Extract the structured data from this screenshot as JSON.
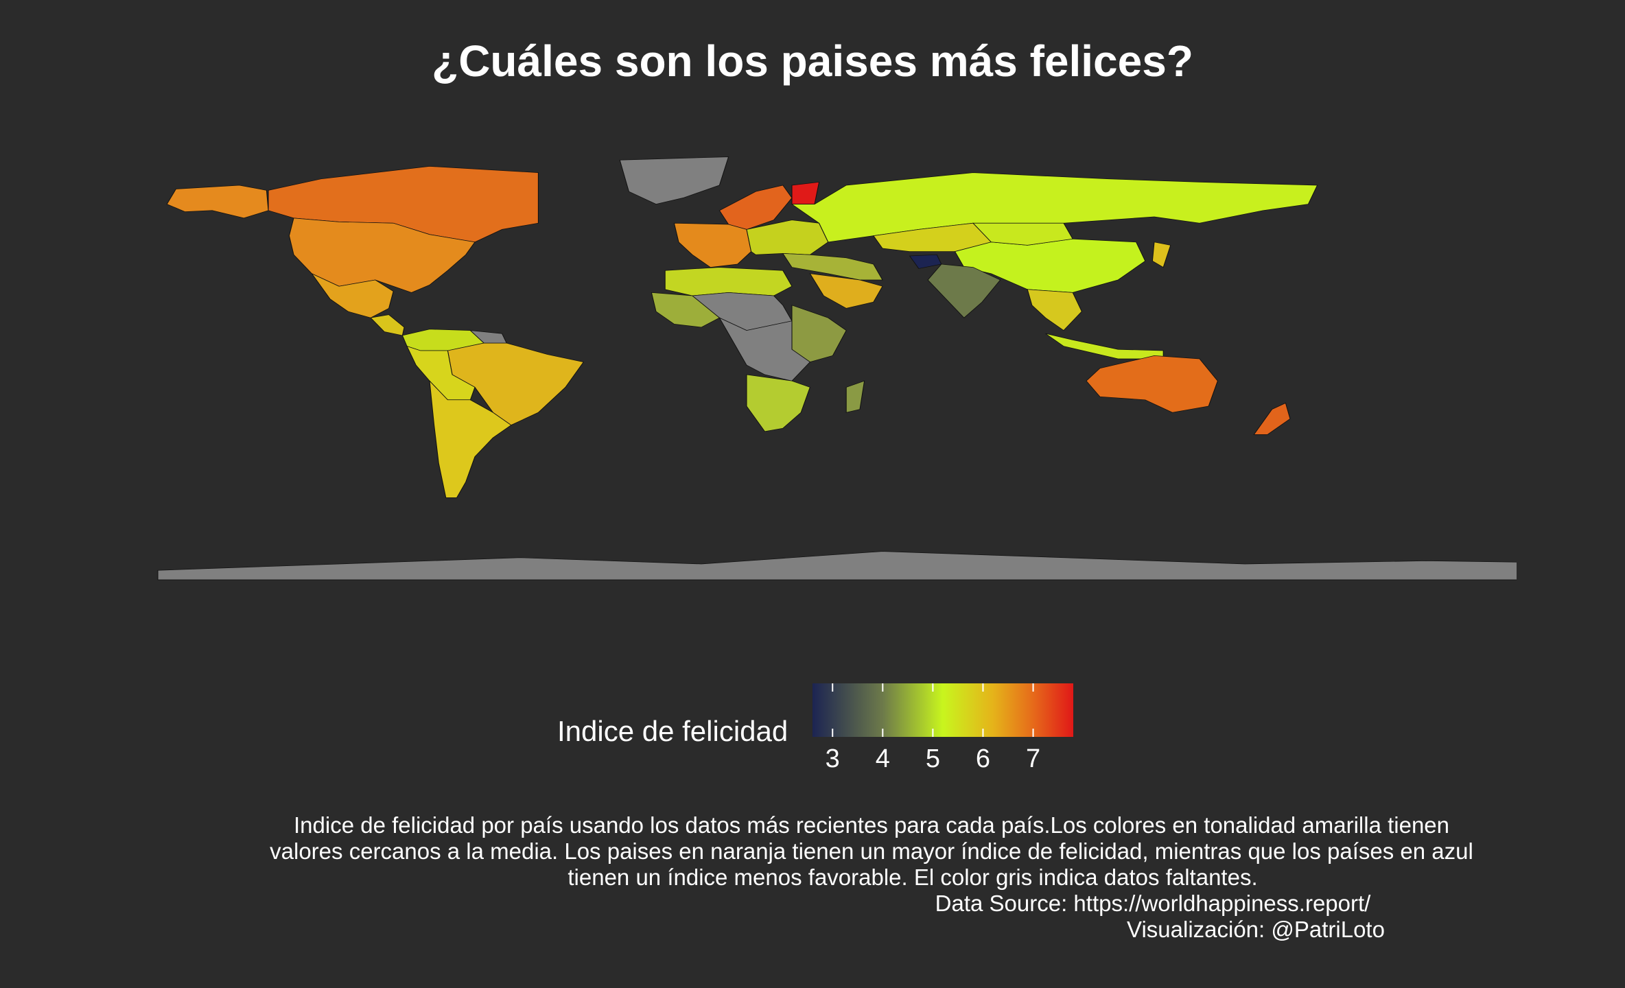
{
  "title": "¿Cuáles son los paises más felices?",
  "legend": {
    "title": "Indice de felicidad",
    "ticks": [
      "3",
      "4",
      "5",
      "6",
      "7"
    ],
    "tick_values": [
      3,
      4,
      5,
      6,
      7
    ],
    "range": [
      2.6,
      7.8
    ],
    "color_stops": [
      {
        "value": 2.6,
        "color": "#1c2452"
      },
      {
        "value": 4.0,
        "color": "#6d7a4a"
      },
      {
        "value": 5.2,
        "color": "#c8f51e"
      },
      {
        "value": 6.2,
        "color": "#e5b31a"
      },
      {
        "value": 7.0,
        "color": "#e66a1a"
      },
      {
        "value": 7.8,
        "color": "#e01818"
      }
    ]
  },
  "colors": {
    "background": "#2b2b2b",
    "missing": "#808080",
    "ocean": "#2b2b2b"
  },
  "map_data": {
    "regions": [
      {
        "name": "Canada",
        "color": "#e26f1c"
      },
      {
        "name": "Alaska",
        "color": "#e58a1e"
      },
      {
        "name": "USA",
        "color": "#e48b1d"
      },
      {
        "name": "Mexico",
        "color": "#e3a21c"
      },
      {
        "name": "Central America",
        "color": "#d9c41b"
      },
      {
        "name": "Greenland",
        "color": "#808080"
      },
      {
        "name": "Colombia/Venezuela",
        "color": "#c7dd1c"
      },
      {
        "name": "Brazil",
        "color": "#dfb51c"
      },
      {
        "name": "Peru/Bolivia",
        "color": "#d7d51c"
      },
      {
        "name": "Argentina/Chile",
        "color": "#ddc81c"
      },
      {
        "name": "Guianas",
        "color": "#808080"
      },
      {
        "name": "Scandinavia",
        "color": "#e2641d"
      },
      {
        "name": "Finland",
        "color": "#e01a18"
      },
      {
        "name": "Western Europe",
        "color": "#e48a1c"
      },
      {
        "name": "Eastern Europe",
        "color": "#c5d11e"
      },
      {
        "name": "Russia",
        "color": "#c8f01e"
      },
      {
        "name": "Kazakhstan",
        "color": "#d4d01c"
      },
      {
        "name": "China",
        "color": "#c4f21e"
      },
      {
        "name": "Mongolia",
        "color": "#c8e81e"
      },
      {
        "name": "Afghanistan",
        "color": "#1c2452"
      },
      {
        "name": "India",
        "color": "#6d7a4a"
      },
      {
        "name": "Saudi Arabia",
        "color": "#dfae1d"
      },
      {
        "name": "Middle East",
        "color": "#a7b337"
      },
      {
        "name": "North Africa",
        "color": "#c3d622"
      },
      {
        "name": "Sahel",
        "color": "#808080"
      },
      {
        "name": "West Africa",
        "color": "#9dae3a"
      },
      {
        "name": "East Africa",
        "color": "#8d9a42"
      },
      {
        "name": "Central Africa",
        "color": "#808080"
      },
      {
        "name": "Southern Africa",
        "color": "#b4cc30"
      },
      {
        "name": "Madagascar",
        "color": "#8a9a44"
      },
      {
        "name": "Southeast Asia",
        "color": "#d6c81e"
      },
      {
        "name": "Indonesia",
        "color": "#c8e81e"
      },
      {
        "name": "Japan",
        "color": "#dec01c"
      },
      {
        "name": "Australia",
        "color": "#e36d1a"
      },
      {
        "name": "New Zealand",
        "color": "#e2641b"
      },
      {
        "name": "Antarctica",
        "color": "#808080"
      }
    ]
  },
  "caption": [
    "Indice de felicidad por país usando los datos más recientes para cada país.Los colores en tonalidad amarilla tienen",
    "valores cercanos a la media. Los paises en naranja tienen un mayor índice de felicidad, mientras que los países en azul",
    "tienen un índice menos favorable. El color gris indica datos faltantes.",
    "Data Source: https://worldhappiness.report/",
    "Visualización: @PatriLoto"
  ]
}
